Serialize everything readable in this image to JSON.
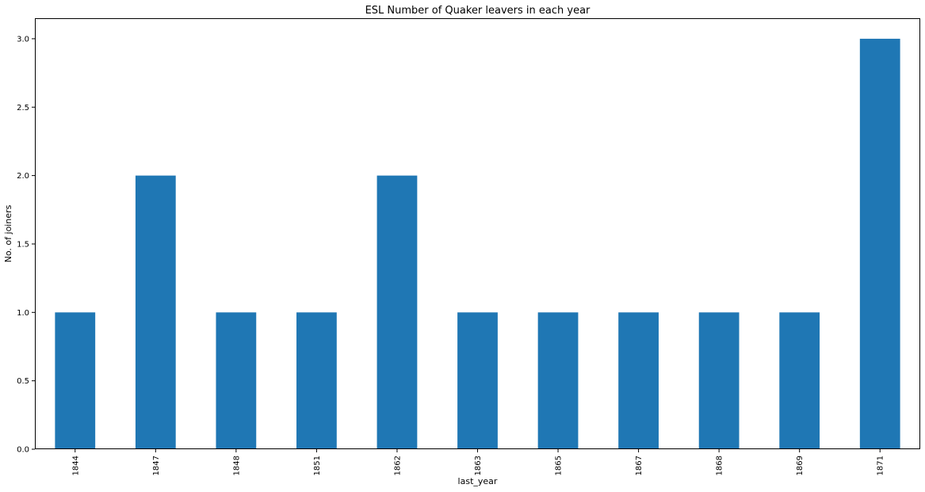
{
  "chart_data": {
    "type": "bar",
    "title": "ESL Number of Quaker leavers in each year",
    "xlabel": "last_year",
    "ylabel": "No. of joiners",
    "categories": [
      "1844",
      "1847",
      "1848",
      "1851",
      "1862",
      "1863",
      "1865",
      "1867",
      "1868",
      "1869",
      "1871"
    ],
    "values": [
      1,
      2,
      1,
      1,
      2,
      1,
      1,
      1,
      1,
      1,
      3
    ],
    "ylim": [
      0,
      3.15
    ],
    "yticks": [
      "0.0",
      "0.5",
      "1.0",
      "1.5",
      "2.0",
      "2.5",
      "3.0"
    ],
    "grid": false,
    "legend": "none",
    "bar_color": "#1f77b4"
  }
}
